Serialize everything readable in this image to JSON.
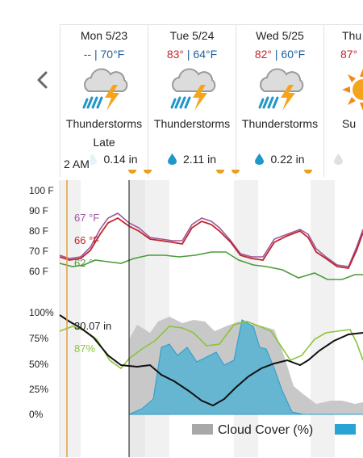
{
  "days": [
    {
      "name": "Mon 5/23",
      "hi": "--",
      "lo": "70°F",
      "condition": "Thunderstorms",
      "condition_extra": "Late",
      "precip": "0.14 in",
      "icon": "thunderstorm-icon"
    },
    {
      "name": "Tue 5/24",
      "hi": "83°",
      "lo": "64°F",
      "condition": "Thunderstorms",
      "condition_extra": "",
      "precip": "2.11 in",
      "icon": "thunderstorm-icon"
    },
    {
      "name": "Wed 5/25",
      "hi": "82°",
      "lo": "60°F",
      "condition": "Thunderstorms",
      "condition_extra": "",
      "precip": "0.22 in",
      "icon": "thunderstorm-icon"
    },
    {
      "name": "Thu",
      "hi": "87°",
      "lo": "",
      "condition": "Su",
      "condition_extra": "",
      "precip": "",
      "icon": "sunny-icon"
    }
  ],
  "separator": " | ",
  "time_cursor": "2 AM",
  "temperature_chart": {
    "y_ticks": [
      "100 F",
      "90 F",
      "80 F",
      "70 F",
      "60 F"
    ],
    "readouts": {
      "temp": "67 °F",
      "feels": "66 °F",
      "dew": "62 °"
    }
  },
  "sky_chart": {
    "y_ticks": [
      "100%",
      "75%",
      "50%",
      "25%",
      "0%"
    ],
    "readouts": {
      "pressure": "30.07 in",
      "humidity": "87%"
    }
  },
  "legend": {
    "cloud_cover": "Cloud Cover (%)"
  },
  "colors": {
    "temperature": "#c0262d",
    "feels_like": "#a0559a",
    "dew_point": "#4c9a3c",
    "cloud_cover": "#c8c8c8",
    "precip_chance": "#66b6d1",
    "humidity": "#8cc43a",
    "pressure": "#111111",
    "cursor": "#e0a040",
    "hi_temp": "#c0262d",
    "lo_temp": "#1d5e9c"
  }
}
